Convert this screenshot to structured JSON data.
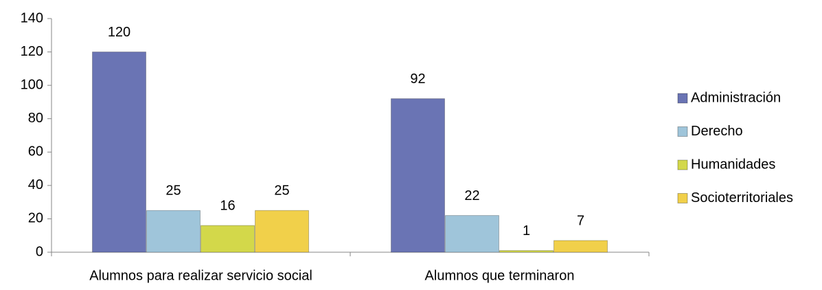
{
  "chart_data": {
    "type": "bar",
    "categories": [
      "Alumnos para realizar servicio social",
      "Alumnos que terminaron"
    ],
    "series": [
      {
        "name": "Administración",
        "color": "#6a74b4",
        "values": [
          120,
          92
        ]
      },
      {
        "name": "Derecho",
        "color": "#9fc5da",
        "values": [
          25,
          22
        ]
      },
      {
        "name": "Humanidades",
        "color": "#d3d84a",
        "values": [
          16,
          1
        ]
      },
      {
        "name": "Socioterritoriales",
        "color": "#f1d04a",
        "values": [
          25,
          7
        ]
      }
    ],
    "ylim": [
      0,
      140
    ],
    "yticks": [
      0,
      20,
      40,
      60,
      80,
      100,
      120,
      140
    ],
    "grid": false,
    "legend": "right"
  }
}
